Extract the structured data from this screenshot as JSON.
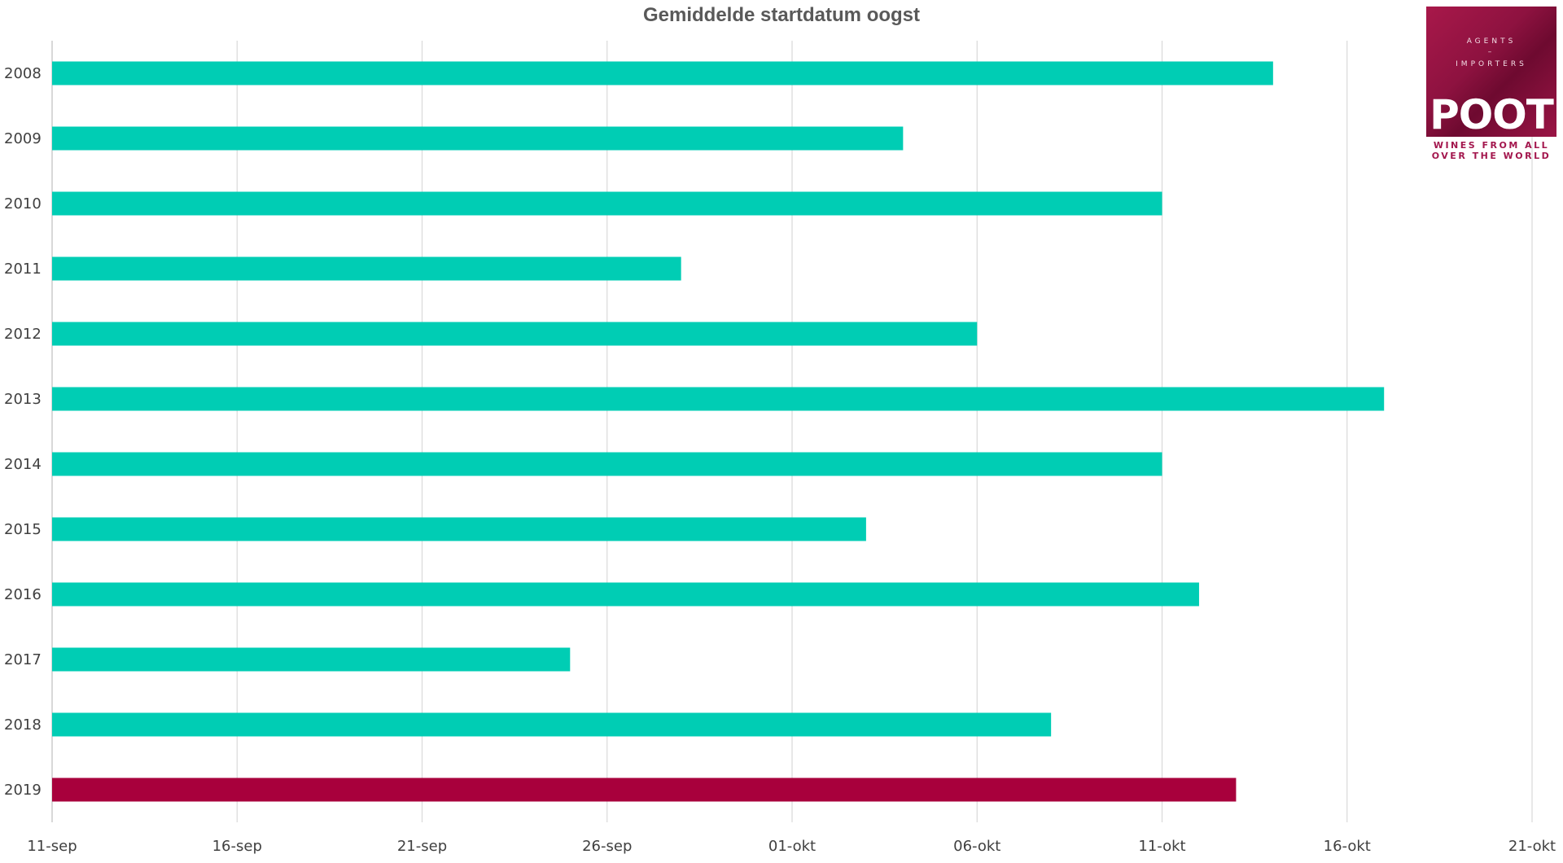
{
  "chart_data": {
    "type": "bar",
    "orientation": "horizontal",
    "title": "Gemiddelde startdatum oogst",
    "xlabel": "",
    "ylabel": "",
    "categories": [
      "2008",
      "2009",
      "2010",
      "2011",
      "2012",
      "2013",
      "2014",
      "2015",
      "2016",
      "2017",
      "2018",
      "2019"
    ],
    "values": [
      "14-okt",
      "04-okt",
      "11-okt",
      "28-sep",
      "06-okt",
      "17-okt",
      "11-okt",
      "03-okt",
      "12-okt",
      "25-sep",
      "08-okt",
      "13-okt"
    ],
    "x_ticks": [
      "11-sep",
      "16-sep",
      "21-sep",
      "26-sep",
      "01-okt",
      "06-okt",
      "11-okt",
      "16-okt",
      "21-okt"
    ],
    "xlim": [
      "11-sep",
      "21-okt"
    ],
    "grid": "vertical",
    "legend": "none",
    "colors": {
      "bar": "#00cdb4",
      "highlight": "#a8003c"
    },
    "highlight_category": "2019"
  },
  "logo": {
    "agents": "AGENTS",
    "dash": "–",
    "importers": "IMPORTERS",
    "name": "POOT",
    "tagline_line1": "WINES FROM ALL",
    "tagline_line2": "OVER THE WORLD"
  }
}
